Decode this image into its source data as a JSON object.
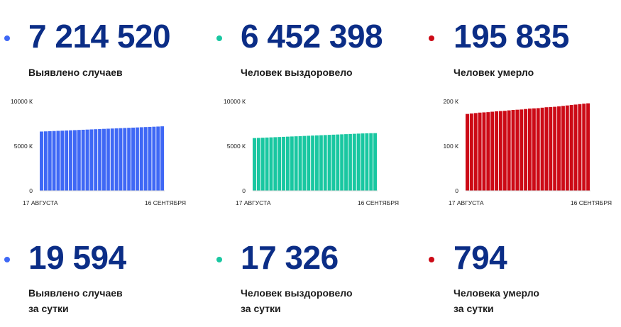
{
  "colors": {
    "blue": "#3f68f5",
    "green": "#19c7a1",
    "red": "#cc0a16",
    "number": "#0b2d86"
  },
  "totals": [
    {
      "value": "7 214 520",
      "label": "Выявлено случаев"
    },
    {
      "value": "6 452 398",
      "label": "Человек выздоровело"
    },
    {
      "value": "195 835",
      "label": "Человек умерло"
    }
  ],
  "daily": [
    {
      "value": "19 594",
      "label_line1": "Выявлено случаев",
      "label_line2": "за сутки"
    },
    {
      "value": "17 326",
      "label_line1": "Человек выздоровело",
      "label_line2": "за сутки"
    },
    {
      "value": "794",
      "label_line1": "Человека умерло",
      "label_line2": "за сутки"
    }
  ],
  "chart_data": [
    {
      "type": "bar",
      "color": "#3f68f5",
      "x_start_label": "17 АВГУСТА",
      "x_end_label": "16 СЕНТЯБРЯ",
      "y_ticks": [
        "10000 К",
        "5000 К",
        "0"
      ],
      "ylim": [
        0,
        10000
      ],
      "unit": "К",
      "values": [
        6630,
        6650,
        6670,
        6690,
        6710,
        6730,
        6750,
        6770,
        6790,
        6810,
        6830,
        6850,
        6870,
        6890,
        6910,
        6930,
        6950,
        6970,
        6990,
        7010,
        7030,
        7050,
        7070,
        7090,
        7110,
        7130,
        7150,
        7170,
        7190,
        7215
      ]
    },
    {
      "type": "bar",
      "color": "#19c7a1",
      "x_start_label": "17 АВГУСТА",
      "x_end_label": "16 СЕНТЯБРЯ",
      "y_ticks": [
        "10000 К",
        "5000 К",
        "0"
      ],
      "ylim": [
        0,
        10000
      ],
      "unit": "К",
      "values": [
        5900,
        5920,
        5940,
        5960,
        5980,
        6000,
        6020,
        6040,
        6060,
        6080,
        6100,
        6120,
        6140,
        6160,
        6180,
        6200,
        6220,
        6240,
        6260,
        6280,
        6300,
        6320,
        6340,
        6360,
        6380,
        6400,
        6420,
        6435,
        6445,
        6452
      ]
    },
    {
      "type": "bar",
      "color": "#cc0a16",
      "x_start_label": "17 АВГУСТА",
      "x_end_label": "16 СЕНТЯБРЯ",
      "y_ticks": [
        "200 К",
        "100 К",
        "0"
      ],
      "ylim": [
        0,
        200
      ],
      "unit": "К",
      "values": [
        172,
        173,
        174,
        175,
        175.5,
        176,
        177,
        178,
        178.5,
        179,
        180,
        181,
        181.5,
        182,
        183,
        184,
        184.5,
        185,
        186,
        187,
        187.5,
        188,
        189,
        190,
        191,
        192,
        193,
        194,
        195,
        195.8
      ]
    }
  ]
}
